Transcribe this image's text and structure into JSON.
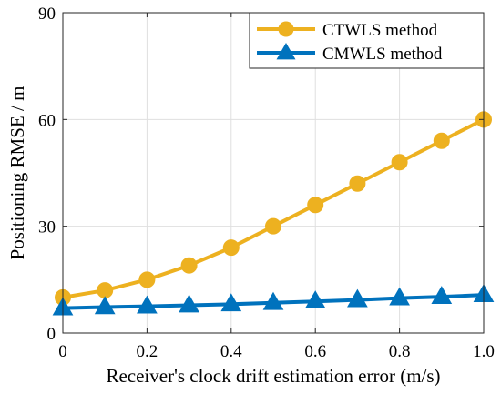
{
  "chart_data": {
    "type": "line",
    "xlabel": "Receiver's clock drift estimation error (m/s)",
    "ylabel": "Positioning RMSE / m",
    "xlim": [
      0,
      1.0
    ],
    "ylim": [
      0,
      90
    ],
    "x_ticks": [
      "0",
      "0.2",
      "0.4",
      "0.6",
      "0.8",
      "1.0"
    ],
    "y_ticks": [
      "0",
      "30",
      "60",
      "90"
    ],
    "grid": true,
    "legend_position": "top-right",
    "x": [
      0,
      0.1,
      0.2,
      0.3,
      0.4,
      0.5,
      0.6,
      0.7,
      0.8,
      0.9,
      1.0
    ],
    "series": [
      {
        "name": "CTWLS method",
        "color": "#EDB120",
        "marker": "circle",
        "values": [
          10,
          12,
          15,
          19,
          24,
          30,
          36,
          42,
          48,
          54,
          60
        ]
      },
      {
        "name": "CMWLS method",
        "color": "#0072BD",
        "marker": "triangle",
        "values": [
          7,
          7.3,
          7.5,
          7.8,
          8.1,
          8.5,
          8.9,
          9.3,
          9.8,
          10.2,
          10.7
        ]
      }
    ]
  }
}
